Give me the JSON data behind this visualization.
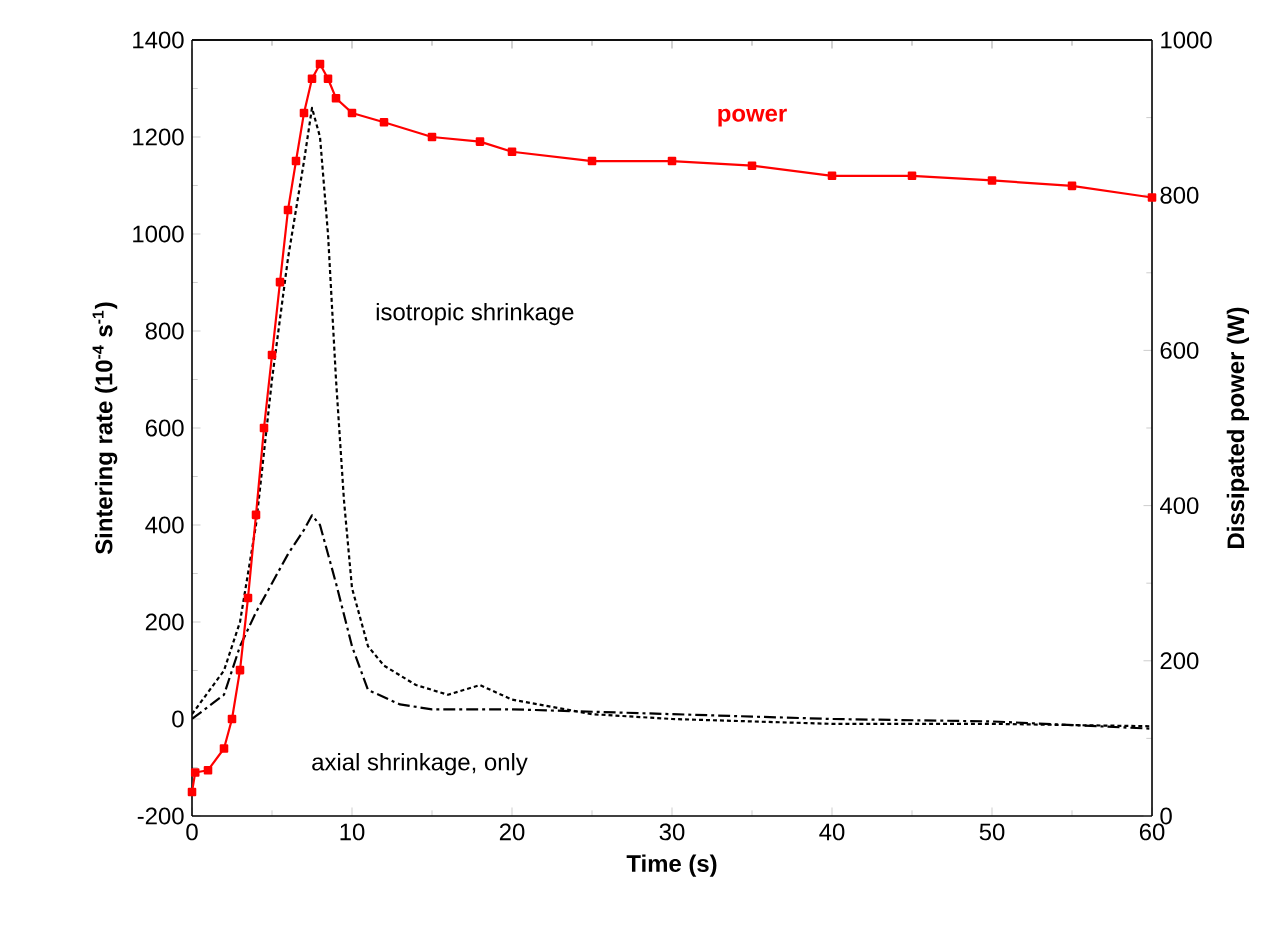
{
  "chart_data": {
    "type": "line",
    "xlabel": "Time (s)",
    "ylabel": "Sintering rate (10$^{-4}$ s$^{-1}$)",
    "y2label": "Dissipated power (W)",
    "xlim": [
      0,
      60
    ],
    "xticks": [
      0,
      10,
      20,
      30,
      40,
      50,
      60
    ],
    "ylim": [
      -200,
      1400
    ],
    "yticks": [
      -200,
      0,
      200,
      400,
      600,
      800,
      1000,
      1200,
      1400
    ],
    "y2lim": [
      0,
      1000
    ],
    "y2ticks": [
      0,
      200,
      400,
      600,
      800,
      1000
    ],
    "grid": false,
    "series": [
      {
        "name": "power",
        "color": "#ff0000",
        "axis": "y2",
        "marker": "square",
        "line_style": "solid",
        "x": [
          0,
          0.2,
          1,
          2,
          2.5,
          3,
          3.5,
          4,
          4.5,
          5,
          5.5,
          6,
          6.5,
          7,
          7.5,
          8,
          8.5,
          9,
          10,
          12,
          15,
          18,
          20,
          25,
          30,
          35,
          40,
          45,
          50,
          55,
          60
        ],
        "values": [
          31,
          56,
          59,
          87,
          125,
          188,
          281,
          388,
          500,
          594,
          688,
          781,
          844,
          906,
          950,
          969,
          950,
          925,
          906,
          894,
          875,
          869,
          856,
          844,
          844,
          838,
          825,
          825,
          819,
          812,
          797
        ]
      },
      {
        "name": "isotropic shrinkage",
        "color": "#000000",
        "axis": "y",
        "marker": "none",
        "line_style": "dotted",
        "x": [
          0,
          2,
          3,
          4,
          5,
          6,
          7,
          7.5,
          8,
          8.5,
          9,
          9.5,
          10,
          11,
          12,
          14,
          16,
          18,
          20,
          25,
          30,
          40,
          50,
          60
        ],
        "values": [
          10,
          100,
          200,
          400,
          700,
          950,
          1150,
          1260,
          1200,
          1000,
          700,
          450,
          270,
          150,
          110,
          70,
          50,
          70,
          40,
          10,
          0,
          -10,
          -10,
          -15
        ]
      },
      {
        "name": "axial shrinkage, only",
        "color": "#000000",
        "axis": "y",
        "marker": "none",
        "line_style": "dashdot",
        "x": [
          0,
          2,
          3,
          4,
          5,
          6,
          7,
          7.5,
          8,
          9,
          10,
          11,
          13,
          15,
          20,
          30,
          40,
          50,
          60
        ],
        "values": [
          0,
          50,
          150,
          220,
          280,
          340,
          390,
          420,
          400,
          280,
          150,
          60,
          30,
          20,
          20,
          10,
          0,
          -5,
          -20
        ]
      }
    ]
  }
}
